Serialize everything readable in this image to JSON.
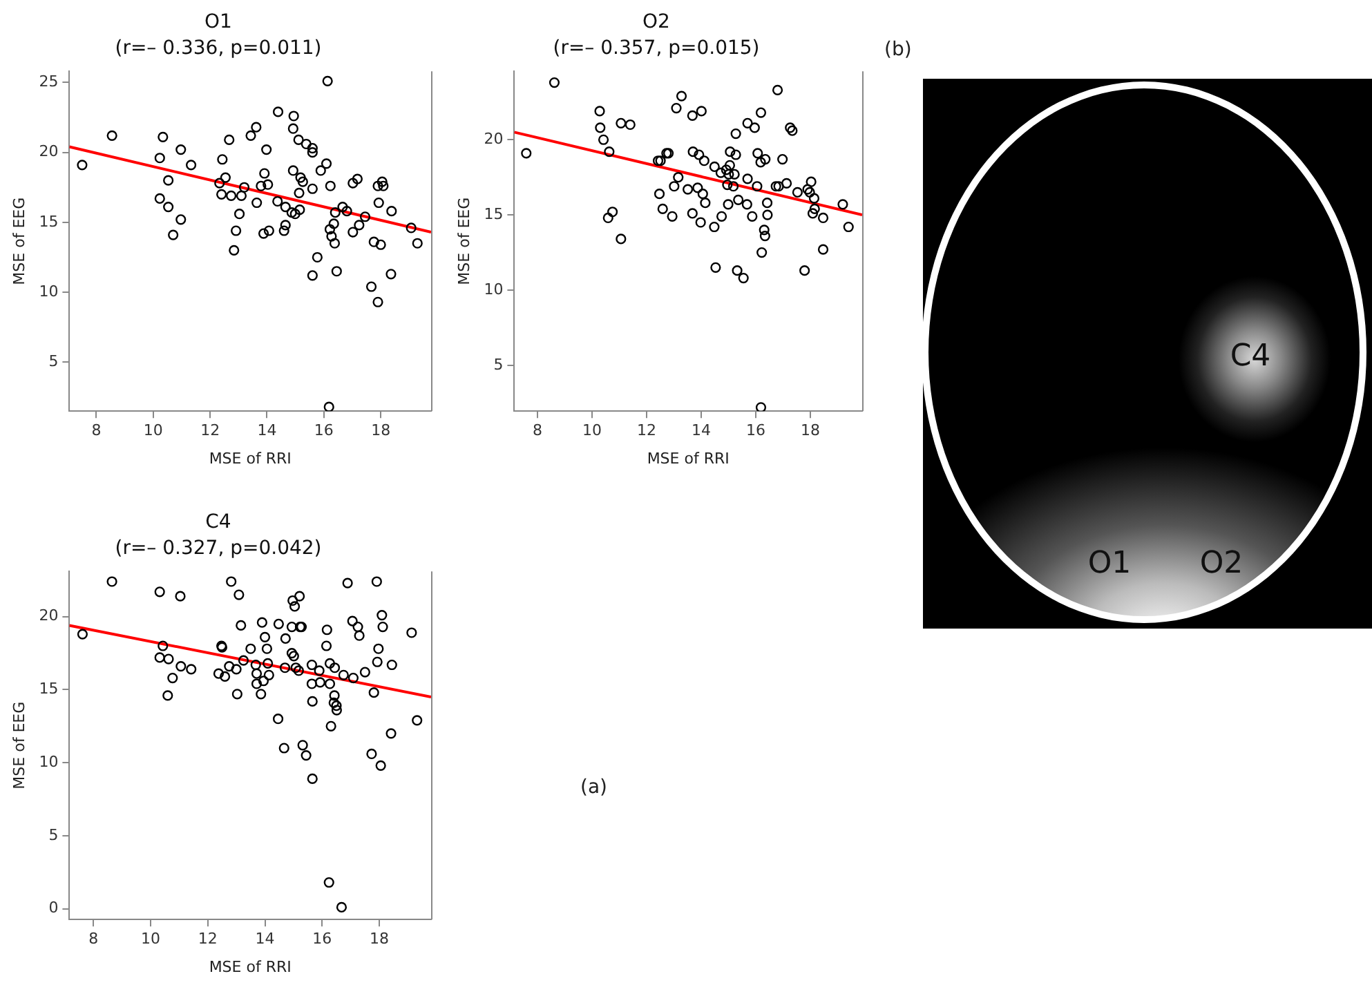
{
  "chart_data": [
    {
      "type": "scatter",
      "title": "O1",
      "subtitle": "(r=– 0.336, p=0.011)",
      "xlabel": "MSE of RRI",
      "ylabel": "MSE of EEG",
      "xlim": [
        7.05,
        19.77
      ],
      "ylim": [
        1.5,
        25.8
      ],
      "xticks": [
        8,
        10,
        12,
        14,
        16,
        18
      ],
      "yticks": [
        5,
        10,
        15,
        20,
        25
      ],
      "series": [
        {
          "type": "scatter",
          "color": "#000000",
          "marker": "circle",
          "x": [
            7.5,
            8.55,
            10.34,
            10.23,
            10.53,
            10.97,
            11.33,
            10.23,
            10.53,
            10.97,
            10.7,
            12.43,
            12.67,
            12.54,
            12.33,
            12.4,
            12.74,
            13.1,
            13.2,
            13.03,
            12.91,
            12.84,
            13.43,
            13.62,
            13.98,
            13.91,
            13.79,
            14.03,
            13.64,
            13.88,
            14.07,
            14.39,
            14.94,
            14.92,
            15.11,
            15.38,
            15.6,
            15.6,
            14.92,
            15.18,
            15.26,
            15.13,
            14.37,
            14.65,
            14.87,
            14.99,
            15.15,
            14.65,
            14.6,
            15.6,
            15.89,
            16.09,
            16.13,
            16.23,
            16.4,
            16.66,
            16.81,
            16.35,
            16.21,
            16.27,
            16.38,
            15.77,
            15.6,
            16.45,
            17.02,
            17.18,
            17.9,
            18.05,
            18.09,
            17.93,
            18.38,
            17.45,
            17.24,
            17.02,
            17.76,
            18.0,
            18.36,
            17.67,
            17.9,
            19.07,
            19.29,
            16.18
          ],
          "values": [
            19.1,
            21.2,
            21.1,
            19.6,
            18.0,
            20.2,
            19.1,
            16.7,
            16.1,
            15.2,
            14.1,
            19.5,
            20.9,
            18.2,
            17.8,
            17.0,
            16.9,
            16.9,
            17.5,
            15.6,
            14.4,
            13.0,
            21.2,
            21.8,
            20.2,
            18.5,
            17.6,
            17.7,
            16.4,
            14.2,
            14.4,
            22.9,
            22.6,
            21.7,
            20.9,
            20.6,
            20.3,
            20.0,
            18.7,
            18.2,
            17.9,
            17.1,
            16.5,
            16.1,
            15.7,
            15.6,
            15.9,
            14.8,
            14.4,
            17.4,
            18.7,
            19.2,
            25.1,
            17.6,
            15.7,
            16.1,
            15.8,
            14.9,
            14.5,
            14.0,
            13.5,
            12.5,
            11.2,
            11.5,
            17.8,
            18.1,
            17.6,
            17.9,
            17.6,
            16.4,
            15.8,
            15.4,
            14.8,
            14.3,
            13.6,
            13.4,
            11.3,
            10.4,
            9.3,
            14.6,
            13.5,
            1.8
          ]
        },
        {
          "type": "line",
          "color": "#ff0000",
          "x": [
            7.05,
            19.77
          ],
          "values": [
            20.4,
            14.3
          ]
        }
      ]
    },
    {
      "type": "scatter",
      "title": "O2",
      "subtitle": "(r=– 0.357, p=0.015)",
      "xlabel": "MSE of RRI",
      "ylabel": "MSE of EEG",
      "xlim": [
        7.15,
        19.9
      ],
      "ylim": [
        1.95,
        24.55
      ],
      "xticks": [
        8,
        10,
        12,
        14,
        16,
        18
      ],
      "yticks": [
        5,
        10,
        15,
        20
      ],
      "series": [
        {
          "type": "scatter",
          "color": "#000000",
          "marker": "circle",
          "x": [
            7.59,
            8.62,
            10.28,
            10.3,
            10.42,
            10.63,
            11.06,
            11.4,
            10.75,
            10.59,
            11.06,
            12.42,
            12.51,
            12.73,
            12.8,
            13.16,
            13.01,
            12.47,
            12.59,
            12.94,
            13.28,
            13.09,
            13.68,
            14.01,
            13.7,
            13.92,
            14.11,
            13.51,
            13.87,
            14.06,
            14.15,
            13.68,
            13.98,
            14.48,
            14.49,
            14.72,
            14.92,
            15.05,
            15.06,
            15.27,
            15.01,
            15.22,
            14.96,
            15.18,
            15.36,
            14.75,
            14.99,
            15.27,
            15.7,
            15.96,
            15.7,
            15.68,
            15.87,
            14.53,
            15.32,
            15.55,
            16.07,
            16.18,
            16.35,
            16.19,
            16.8,
            16.98,
            16.05,
            16.42,
            16.43,
            16.31,
            16.34,
            16.22,
            16.74,
            16.84,
            17.13,
            17.26,
            17.34,
            17.53,
            17.9,
            18.03,
            17.98,
            18.14,
            18.16,
            18.09,
            18.47,
            18.47,
            17.79,
            19.19,
            19.4,
            16.19
          ],
          "values": [
            19.1,
            23.8,
            21.9,
            20.8,
            20.0,
            19.2,
            21.1,
            21.0,
            15.2,
            14.8,
            13.4,
            18.6,
            18.6,
            19.1,
            19.1,
            17.5,
            16.9,
            16.4,
            15.4,
            14.9,
            22.9,
            22.1,
            21.6,
            21.9,
            19.2,
            19.0,
            18.6,
            16.7,
            16.8,
            16.4,
            15.8,
            15.1,
            14.5,
            14.2,
            18.2,
            17.8,
            18.0,
            18.3,
            19.2,
            19.0,
            17.7,
            17.7,
            17.0,
            16.9,
            16.0,
            14.9,
            15.7,
            20.4,
            21.1,
            20.8,
            17.4,
            15.7,
            14.9,
            11.5,
            11.3,
            10.8,
            19.1,
            18.5,
            18.7,
            21.8,
            23.3,
            18.7,
            16.9,
            15.8,
            15.0,
            14.0,
            13.6,
            12.5,
            16.9,
            16.9,
            17.1,
            20.8,
            20.6,
            16.5,
            16.7,
            17.2,
            16.5,
            16.1,
            15.4,
            15.1,
            14.8,
            12.7,
            11.3,
            15.7,
            14.2,
            2.2
          ]
        },
        {
          "type": "line",
          "color": "#ff0000",
          "x": [
            7.15,
            19.9
          ],
          "values": [
            20.5,
            15.0
          ]
        }
      ]
    },
    {
      "type": "scatter",
      "title": "C4",
      "subtitle": "(r=– 0.327, p=0.042)",
      "xlabel": "MSE of RRI",
      "ylabel": "MSE of EEG",
      "xlim": [
        7.16,
        19.81
      ],
      "ylim": [
        -0.74,
        23.1
      ],
      "xticks": [
        8,
        10,
        12,
        14,
        16,
        18
      ],
      "yticks": [
        0,
        5,
        10,
        15,
        20
      ],
      "annotations": [
        "(a)"
      ],
      "series": [
        {
          "type": "scatter",
          "color": "#000000",
          "marker": "circle",
          "x": [
            7.62,
            8.65,
            10.32,
            11.04,
            10.43,
            10.32,
            10.63,
            11.06,
            11.42,
            10.77,
            10.6,
            12.48,
            12.5,
            12.82,
            13.09,
            13.16,
            13.5,
            13.25,
            13.0,
            12.75,
            12.6,
            12.38,
            13.03,
            13.9,
            14.0,
            14.07,
            14.48,
            14.72,
            14.1,
            13.68,
            13.71,
            14.14,
            13.95,
            13.71,
            13.86,
            14.7,
            14.94,
            15.01,
            15.08,
            15.18,
            14.97,
            15.04,
            15.21,
            14.94,
            15.23,
            15.28,
            14.46,
            14.67,
            15.32,
            15.44,
            15.66,
            15.64,
            15.9,
            15.64,
            15.93,
            16.27,
            15.66,
            16.17,
            16.15,
            16.27,
            16.44,
            16.75,
            17.09,
            16.43,
            16.41,
            16.5,
            16.51,
            16.31,
            16.89,
            17.06,
            17.25,
            17.3,
            17.5,
            17.91,
            18.09,
            18.12,
            17.97,
            17.93,
            18.44,
            17.81,
            18.41,
            17.73,
            18.05,
            19.13,
            19.32,
            16.24,
            16.68
          ],
          "values": [
            18.8,
            22.4,
            21.7,
            21.4,
            18.0,
            17.2,
            17.1,
            16.6,
            16.4,
            15.8,
            14.6,
            18.0,
            17.9,
            22.4,
            21.5,
            19.4,
            17.8,
            17.0,
            16.4,
            16.6,
            15.9,
            16.1,
            14.7,
            19.6,
            18.6,
            17.8,
            19.5,
            18.5,
            16.8,
            16.7,
            16.1,
            16.0,
            15.6,
            15.4,
            14.7,
            16.5,
            17.5,
            17.3,
            16.5,
            16.3,
            21.1,
            20.7,
            21.4,
            19.3,
            19.3,
            19.3,
            13.0,
            11.0,
            11.2,
            10.5,
            8.9,
            16.7,
            16.3,
            15.4,
            15.5,
            15.4,
            14.2,
            19.1,
            18.0,
            16.8,
            16.5,
            16.0,
            15.8,
            14.6,
            14.1,
            13.9,
            13.6,
            12.5,
            22.3,
            19.7,
            19.3,
            18.7,
            16.2,
            22.4,
            20.1,
            19.3,
            17.8,
            16.9,
            16.7,
            14.8,
            12.0,
            10.6,
            9.8,
            18.9,
            12.9,
            1.8,
            0.1
          ]
        },
        {
          "type": "line",
          "color": "#ff0000",
          "x": [
            7.16,
            19.81
          ],
          "values": [
            19.4,
            14.5
          ]
        }
      ]
    },
    {
      "type": "other",
      "title": "(b)",
      "annotations": [
        "C4",
        "O1",
        "O2"
      ]
    }
  ]
}
